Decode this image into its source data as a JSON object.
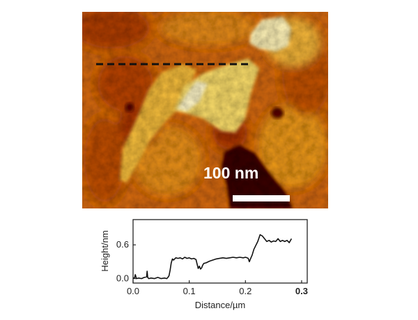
{
  "afm_image": {
    "scale_bar_label": "100 nm",
    "colormap": [
      "#6b1504",
      "#a8320a",
      "#d5640f",
      "#ef9a1a",
      "#f8c93a",
      "#fdeea0",
      "#ffffff"
    ]
  },
  "chart_data": {
    "type": "line",
    "xlabel": "Distance/µm",
    "ylabel": "Height/nm",
    "xlim": [
      0,
      0.31
    ],
    "ylim": [
      -0.08,
      1.05
    ],
    "x_ticks": [
      0.0,
      0.1,
      0.2,
      0.3
    ],
    "x_tick_labels": [
      "0.0",
      "0.1",
      "0.2",
      "0.3"
    ],
    "y_ticks": [
      0.0,
      0.6
    ],
    "y_tick_labels": [
      "0.0",
      "0.6"
    ],
    "grid": false,
    "series": [
      {
        "color": "#111111",
        "x": [
          0.0,
          0.003,
          0.004,
          0.006,
          0.01,
          0.015,
          0.02,
          0.024,
          0.025,
          0.026,
          0.028,
          0.032,
          0.038,
          0.044,
          0.05,
          0.056,
          0.06,
          0.062,
          0.064,
          0.066,
          0.068,
          0.07,
          0.072,
          0.076,
          0.08,
          0.084,
          0.088,
          0.092,
          0.096,
          0.1,
          0.104,
          0.108,
          0.112,
          0.116,
          0.118,
          0.12,
          0.122,
          0.124,
          0.126,
          0.13,
          0.136,
          0.142,
          0.148,
          0.154,
          0.16,
          0.166,
          0.172,
          0.178,
          0.184,
          0.19,
          0.196,
          0.2,
          0.203,
          0.205,
          0.207,
          0.209,
          0.212,
          0.215,
          0.218,
          0.222,
          0.226,
          0.23,
          0.234,
          0.238,
          0.242,
          0.246,
          0.25,
          0.254,
          0.258,
          0.262,
          0.266,
          0.27,
          0.274,
          0.278,
          0.282
        ],
        "y": [
          0.0,
          0.02,
          0.07,
          0.0,
          0.01,
          0.0,
          0.02,
          0.03,
          0.13,
          0.02,
          0.0,
          0.01,
          0.0,
          0.02,
          0.0,
          0.01,
          0.0,
          0.02,
          0.05,
          0.15,
          0.28,
          0.35,
          0.33,
          0.37,
          0.36,
          0.37,
          0.35,
          0.38,
          0.36,
          0.37,
          0.35,
          0.36,
          0.34,
          0.18,
          0.22,
          0.17,
          0.19,
          0.24,
          0.27,
          0.28,
          0.31,
          0.33,
          0.35,
          0.36,
          0.37,
          0.36,
          0.37,
          0.38,
          0.37,
          0.38,
          0.37,
          0.38,
          0.37,
          0.36,
          0.3,
          0.35,
          0.42,
          0.52,
          0.58,
          0.66,
          0.78,
          0.76,
          0.71,
          0.66,
          0.68,
          0.65,
          0.67,
          0.66,
          0.71,
          0.66,
          0.68,
          0.66,
          0.68,
          0.64,
          0.71
        ]
      }
    ]
  }
}
